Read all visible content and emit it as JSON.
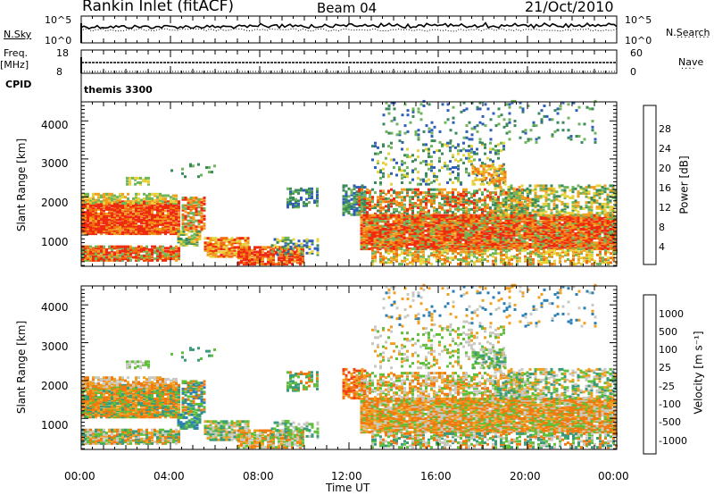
{
  "header": {
    "title": "Rankin Inlet (fitACF)",
    "beam": "Beam 04",
    "date": "21/Oct/2010"
  },
  "params": {
    "nsky_label": "N.Sky",
    "nsky_ticks": [
      "10^5",
      "10^0"
    ],
    "nsearch_label": "N.Search",
    "nsearch_ticks": [
      "10^5",
      "10^0"
    ],
    "freq_label": "Freq.",
    "freq_unit": "[MHz]",
    "freq_ticks": [
      "18",
      "8"
    ],
    "nave_label": "Nave",
    "nave_ticks": [
      "60",
      "0"
    ],
    "cpid_label": "CPID",
    "cpid_value": "themis 3300"
  },
  "colors": {
    "power": [
      "#1f2fe8",
      "#2f5fb8",
      "#3a8a5a",
      "#6fb55a",
      "#e8d23a",
      "#f0a020",
      "#f07010",
      "#ee2a10"
    ],
    "velocity": [
      "#1f4fb0",
      "#2a7fb5",
      "#3a9a7a",
      "#5fbf3a",
      "#c8c8c0",
      "#f0a020",
      "#f07a10",
      "#f04010",
      "#e81810"
    ]
  },
  "chart_data": [
    {
      "type": "heatmap",
      "name": "power",
      "xlabel": "",
      "ylabel": "Slant Range [km]",
      "xlim": [
        0,
        24
      ],
      "ylim": [
        180,
        4500
      ],
      "yticks": [
        "1000",
        "2000",
        "3000",
        "4000"
      ],
      "colorbar_label": "Power [dB]",
      "colorbar_ticks": [
        "4",
        "8",
        "12",
        "16",
        "20",
        "24",
        "28"
      ],
      "colorbar_range": [
        0,
        30
      ]
    },
    {
      "type": "heatmap",
      "name": "velocity",
      "xlabel": "Time UT",
      "ylabel": "Slant Range [km]",
      "xlim": [
        0,
        24
      ],
      "ylim": [
        180,
        4500
      ],
      "xticks": [
        "00:00",
        "04:00",
        "08:00",
        "12:00",
        "16:00",
        "20:00",
        "00:00"
      ],
      "yticks": [
        "1000",
        "2000",
        "3000",
        "4000"
      ],
      "colorbar_label": "Velocity [m s⁻¹]",
      "colorbar_ticks": [
        "1000",
        "500",
        "100",
        "25",
        "-25",
        "-100",
        "-500",
        "-1000"
      ]
    }
  ]
}
